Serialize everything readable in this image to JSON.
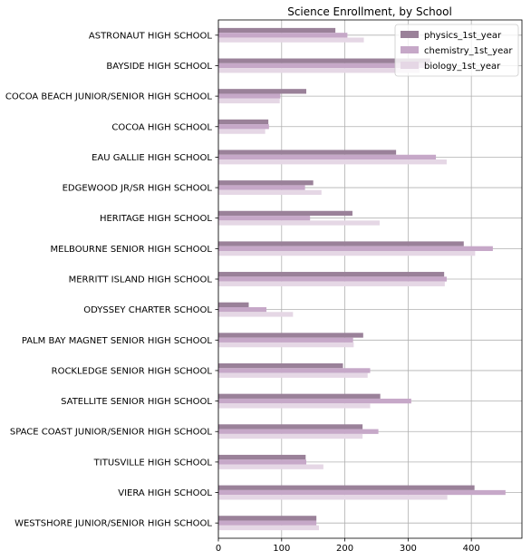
{
  "chart_data": {
    "type": "bar",
    "orientation": "horizontal",
    "title": "Science Enrollment, by School",
    "xlabel": "",
    "ylabel": "",
    "xlim": [
      0,
      480
    ],
    "xticks": [
      0,
      100,
      200,
      300,
      400
    ],
    "xtick_labels": [
      "0",
      "100",
      "200",
      "300",
      "400"
    ],
    "grid": true,
    "legend_position": "top-right",
    "categories": [
      "ASTRONAUT HIGH SCHOOL",
      "BAYSIDE HIGH SCHOOL",
      "COCOA BEACH JUNIOR/SENIOR HIGH SCHOOL",
      "COCOA HIGH SCHOOL",
      "EAU GALLIE HIGH SCHOOL",
      "EDGEWOOD JR/SR HIGH SCHOOL",
      "HERITAGE HIGH SCHOOL",
      "MELBOURNE SENIOR HIGH SCHOOL",
      "MERRITT ISLAND HIGH SCHOOL",
      "ODYSSEY CHARTER SCHOOL",
      "PALM BAY MAGNET SENIOR HIGH SCHOOL",
      "ROCKLEDGE SENIOR HIGH SCHOOL",
      "SATELLITE SENIOR HIGH SCHOOL",
      "SPACE COAST JUNIOR/SENIOR HIGH SCHOOL",
      "TITUSVILLE HIGH SCHOOL",
      "VIERA HIGH SCHOOL",
      "WESTSHORE JUNIOR/SENIOR HIGH SCHOOL"
    ],
    "series": [
      {
        "name": "physics_1st_year",
        "color": "#9a8199",
        "values": [
          185,
          335,
          139,
          79,
          281,
          150,
          212,
          388,
          357,
          48,
          229,
          197,
          256,
          228,
          138,
          405,
          155
        ]
      },
      {
        "name": "chemistry_1st_year",
        "color": "#c6a8c8",
        "values": [
          204,
          330,
          98,
          80,
          344,
          137,
          145,
          434,
          361,
          76,
          213,
          240,
          305,
          253,
          139,
          454,
          155
        ]
      },
      {
        "name": "biology_1st_year",
        "color": "#e5d7e5",
        "values": [
          230,
          318,
          97,
          74,
          361,
          163,
          255,
          406,
          358,
          118,
          214,
          236,
          240,
          228,
          166,
          362,
          159
        ]
      }
    ]
  }
}
